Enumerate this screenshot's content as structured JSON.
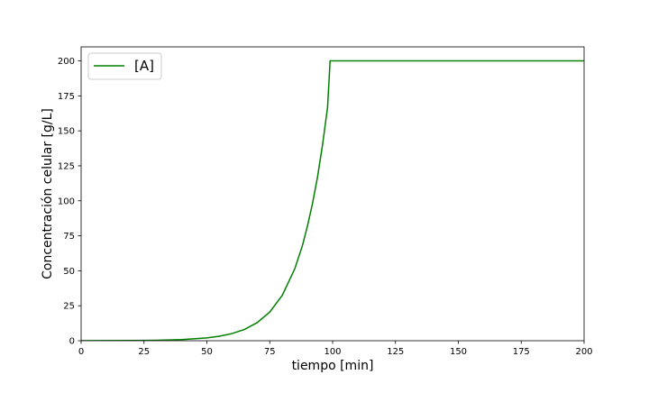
{
  "chart_data": {
    "type": "line",
    "title": "",
    "xlabel": "tiempo [min]",
    "ylabel": "Concentración celular [g/L]",
    "xlim": [
      0,
      200
    ],
    "ylim": [
      0,
      210
    ],
    "xticks": [
      0,
      25,
      50,
      75,
      100,
      125,
      150,
      175,
      200
    ],
    "yticks": [
      0,
      25,
      50,
      75,
      100,
      125,
      150,
      175,
      200
    ],
    "grid": false,
    "legend_position": "top-left",
    "series": [
      {
        "name": "[A]",
        "color": "#008000",
        "x": [
          0,
          10,
          20,
          30,
          40,
          50,
          55,
          60,
          65,
          70,
          75,
          80,
          85,
          88,
          90,
          92,
          94,
          96,
          98,
          99,
          100,
          125,
          150,
          175,
          200
        ],
        "y": [
          0.02,
          0.05,
          0.12,
          0.3,
          0.8,
          2.0,
          3.2,
          5.1,
          8.1,
          12.9,
          20.5,
          32.5,
          51.6,
          68.0,
          82.0,
          98.0,
          117.0,
          140.0,
          167.0,
          200.0,
          200.0,
          200.0,
          200.0,
          200.0,
          200.0
        ]
      }
    ]
  }
}
